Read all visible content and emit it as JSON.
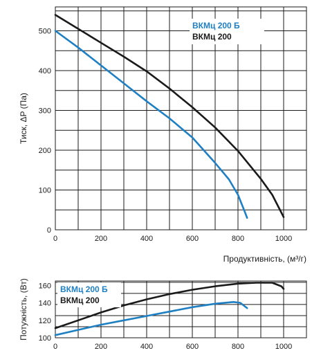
{
  "chart_data": [
    {
      "type": "line",
      "ylabel": "Тиск, ΔP (Па)",
      "xlabel": "Продуктивність, (м³/г)",
      "xlim": [
        0,
        1100
      ],
      "ylim": [
        0,
        560
      ],
      "x_ticks": [
        "0",
        "200",
        "400",
        "600",
        "800",
        "1000"
      ],
      "y_ticks": [
        "0",
        "100",
        "200",
        "300",
        "400",
        "500"
      ],
      "grid": true,
      "legend_position": "top-right",
      "series": [
        {
          "name": "ВКМц 200 Б",
          "color": "#1e7fc3",
          "x": [
            0,
            100,
            200,
            300,
            400,
            500,
            600,
            700,
            760,
            800,
            830,
            840
          ],
          "y": [
            500,
            458,
            413,
            368,
            323,
            280,
            232,
            168,
            127,
            88,
            45,
            30
          ]
        },
        {
          "name": "ВКМц 200",
          "color": "#1a1a1a",
          "x": [
            0,
            100,
            200,
            300,
            400,
            500,
            600,
            700,
            800,
            900,
            950,
            1000
          ],
          "y": [
            540,
            505,
            470,
            435,
            398,
            355,
            308,
            257,
            198,
            128,
            88,
            32
          ]
        }
      ]
    },
    {
      "type": "line",
      "ylabel": "Потужність, (Вт)",
      "xlim": [
        0,
        1100
      ],
      "ylim": [
        100,
        165
      ],
      "x_ticks": [
        "0",
        "200",
        "400",
        "600",
        "800",
        "1000"
      ],
      "y_ticks": [
        "100",
        "120",
        "140",
        "160"
      ],
      "grid": true,
      "legend_position": "top-left",
      "series": [
        {
          "name": "ВКМц 200 Б",
          "color": "#1e7fc3",
          "x": [
            0,
            100,
            200,
            300,
            400,
            500,
            600,
            700,
            780,
            810,
            840
          ],
          "y": [
            103,
            109,
            115,
            120,
            125,
            130,
            135,
            139,
            141,
            140,
            134
          ]
        },
        {
          "name": "ВКМц 200",
          "color": "#1a1a1a",
          "x": [
            0,
            100,
            200,
            300,
            400,
            500,
            600,
            700,
            800,
            880,
            950,
            990,
            1000
          ],
          "y": [
            111,
            120,
            129,
            137,
            144,
            150,
            155,
            159,
            162,
            163,
            163,
            159,
            156
          ]
        }
      ]
    }
  ]
}
